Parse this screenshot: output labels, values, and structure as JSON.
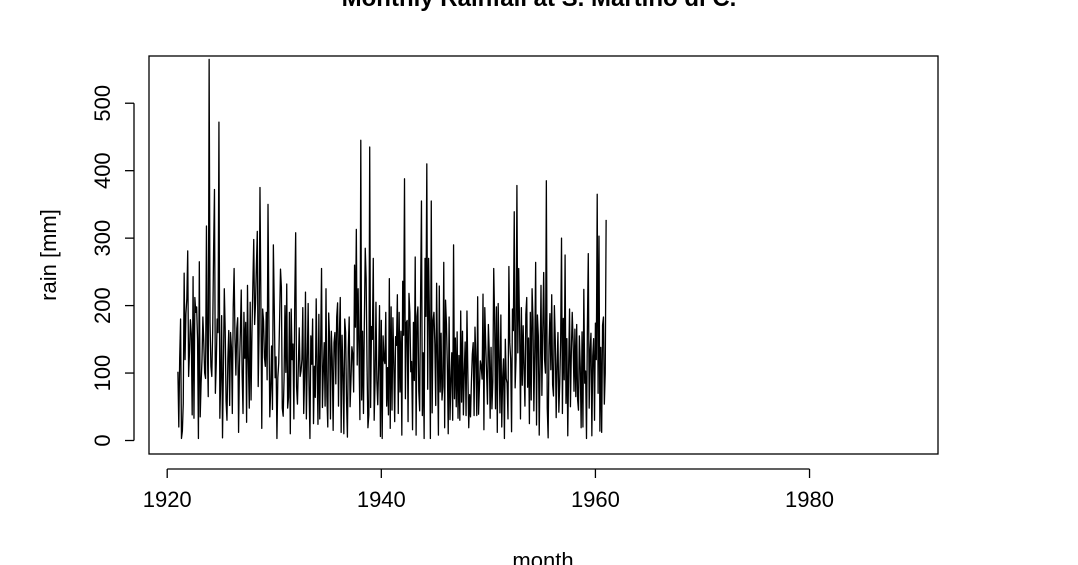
{
  "chart_data": {
    "type": "line",
    "title": "Monthly  Rainfall at S. Martino di C.",
    "xlabel": "month",
    "ylabel": "rain [mm]",
    "xlim": [
      1918.3,
      1992.0
    ],
    "ylim": [
      -20,
      570
    ],
    "x_ticks": [
      1920,
      1940,
      1960,
      1980
    ],
    "x_tick_labels": [
      "1920",
      "1940",
      "1960",
      "1980"
    ],
    "y_ticks": [
      0,
      100,
      200,
      300,
      400,
      500
    ],
    "y_tick_labels": [
      "0",
      "100",
      "200",
      "300",
      "400",
      "500"
    ],
    "grid": false,
    "legend": "none",
    "series": [
      {
        "color": "#000000",
        "x_start": 1921.0,
        "x_step_months": 1,
        "values": [
          102,
          20,
          122,
          180,
          3,
          14,
          55,
          248,
          120,
          188,
          210,
          281,
          95,
          132,
          179,
          158,
          38,
          243,
          33,
          212,
          190,
          198,
          151,
          3,
          265,
          35,
          85,
          120,
          183,
          145,
          100,
          92,
          318,
          140,
          65,
          565,
          175,
          110,
          95,
          163,
          282,
          372,
          70,
          114,
          180,
          160,
          472,
          33,
          90,
          185,
          4,
          105,
          225,
          165,
          58,
          30,
          121,
          163,
          52,
          160,
          138,
          40,
          198,
          255,
          150,
          97,
          166,
          182,
          12,
          110,
          160,
          223,
          98,
          40,
          190,
          122,
          175,
          27,
          230,
          117,
          48,
          205,
          60,
          160,
          230,
          298,
          172,
          203,
          260,
          310,
          80,
          160,
          375,
          210,
          18,
          195,
          177,
          123,
          110,
          190,
          90,
          350,
          180,
          35,
          76,
          140,
          46,
          290,
          200,
          93,
          124,
          3,
          93,
          115,
          180,
          254,
          227,
          48,
          36,
          92,
          200,
          101,
          232,
          48,
          64,
          190,
          10,
          195,
          120,
          143,
          32,
          209,
          308,
          80,
          54,
          110,
          167,
          95,
          103,
          120,
          197,
          40,
          94,
          220,
          32,
          116,
          203,
          80,
          3,
          155,
          113,
          180,
          25,
          110,
          64,
          210,
          112,
          24,
          187,
          32,
          140,
          255,
          49,
          103,
          145,
          51,
          225,
          65,
          20,
          189,
          152,
          32,
          162,
          120,
          15,
          145,
          160,
          84,
          183,
          204,
          51,
          158,
          212,
          12,
          156,
          100,
          10,
          180,
          160,
          60,
          5,
          137,
          183,
          50,
          90,
          139,
          128,
          72,
          260,
          168,
          313,
          112,
          225,
          130,
          31,
          445,
          60,
          162,
          40,
          175,
          285,
          240,
          111,
          19,
          38,
          435,
          49,
          169,
          150,
          270,
          30,
          88,
          205,
          89,
          53,
          112,
          200,
          6,
          178,
          3,
          155,
          120,
          114,
          190,
          51,
          108,
          38,
          240,
          18,
          198,
          45,
          182,
          115,
          28,
          154,
          141,
          216,
          40,
          190,
          72,
          162,
          8,
          236,
          156,
          388,
          62,
          175,
          178,
          28,
          218,
          190,
          102,
          117,
          16,
          175,
          89,
          272,
          8,
          184,
          198,
          73,
          44,
          210,
          355,
          37,
          130,
          3,
          270,
          184,
          410,
          76,
          270,
          176,
          3,
          355,
          41,
          178,
          190,
          143,
          52,
          233,
          120,
          8,
          229,
          72,
          159,
          60,
          80,
          264,
          19,
          208,
          173,
          112,
          10,
          183,
          31,
          90,
          130,
          30,
          290,
          62,
          152,
          50,
          161,
          33,
          126,
          30,
          192,
          57,
          162,
          38,
          102,
          146,
          37,
          192,
          100,
          19,
          68,
          35,
          87,
          128,
          145,
          37,
          168,
          122,
          37,
          213,
          39,
          80,
          118,
          110,
          91,
          217,
          16,
          197,
          143,
          100,
          54,
          172,
          132,
          33,
          138,
          47,
          87,
          255,
          181,
          47,
          198,
          12,
          203,
          127,
          41,
          186,
          20,
          93,
          121,
          3,
          150,
          92,
          85,
          32,
          258,
          145,
          121,
          13,
          195,
          163,
          339,
          78,
          120,
          378,
          130,
          255,
          168,
          32,
          197,
          82,
          170,
          106,
          51,
          187,
          212,
          79,
          152,
          25,
          190,
          60,
          225,
          180,
          44,
          132,
          264,
          23,
          186,
          155,
          8,
          112,
          230,
          67,
          165,
          249,
          120,
          100,
          385,
          48,
          4,
          141,
          188,
          105,
          216,
          83,
          66,
          200,
          149,
          34,
          113,
          160,
          42,
          85,
          146,
          300,
          40,
          181,
          90,
          275,
          55,
          151,
          7,
          112,
          195,
          50,
          130,
          190,
          146,
          73,
          165,
          65,
          172,
          61,
          45,
          155,
          108,
          19,
          161,
          20,
          224,
          85,
          103,
          3,
          167,
          277,
          48,
          133,
          159,
          7,
          125,
          151,
          30,
          174,
          120,
          365,
          70,
          303,
          14,
          138,
          12,
          171,
          183,
          54,
          100,
          327
        ]
      }
    ]
  }
}
